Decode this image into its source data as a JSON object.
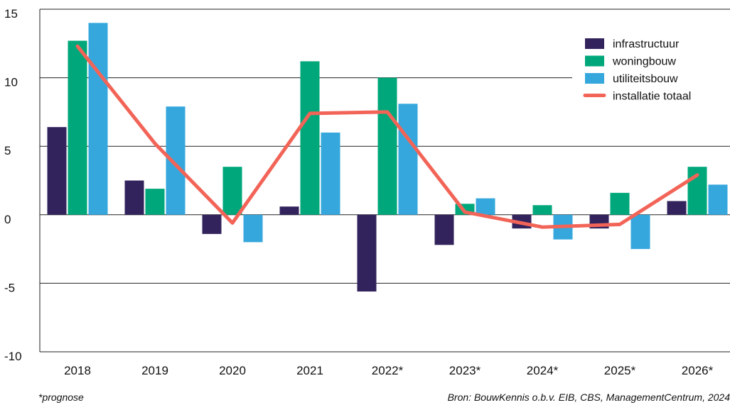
{
  "chart_data": {
    "type": "bar",
    "categories": [
      "2018",
      "2019",
      "2020",
      "2021",
      "2022*",
      "2023*",
      "2024*",
      "2025*",
      "2026*"
    ],
    "series": [
      {
        "name": "infrastructuur",
        "type": "bar",
        "color": "#33235c",
        "values": [
          6.4,
          2.5,
          -1.4,
          0.6,
          -5.6,
          -2.2,
          -1.0,
          -1.0,
          1.0
        ]
      },
      {
        "name": "woningbouw",
        "type": "bar",
        "color": "#00a77a",
        "values": [
          12.7,
          1.9,
          3.5,
          11.2,
          10.0,
          0.8,
          0.7,
          1.6,
          3.5
        ]
      },
      {
        "name": "utiliteitsbouw",
        "type": "bar",
        "color": "#36a7dd",
        "values": [
          14.0,
          7.9,
          -2.0,
          6.0,
          8.1,
          1.2,
          -1.8,
          -2.5,
          2.2
        ]
      },
      {
        "name": "installatie totaal",
        "type": "line",
        "color": "#f26457",
        "values": [
          12.3,
          5.2,
          -0.6,
          7.4,
          7.5,
          0.2,
          -0.9,
          -0.7,
          2.9
        ]
      }
    ],
    "ylim": [
      -10,
      15
    ],
    "yticks": [
      "15",
      "10",
      "5",
      "0",
      "-5",
      "-10"
    ],
    "grid": true,
    "legend_position": "top-right",
    "title": "",
    "xlabel": "",
    "ylabel": ""
  },
  "footnote": "*prognose",
  "source": "Bron: BouwKennis o.b.v. EIB, CBS, ManagementCentrum, 2024"
}
